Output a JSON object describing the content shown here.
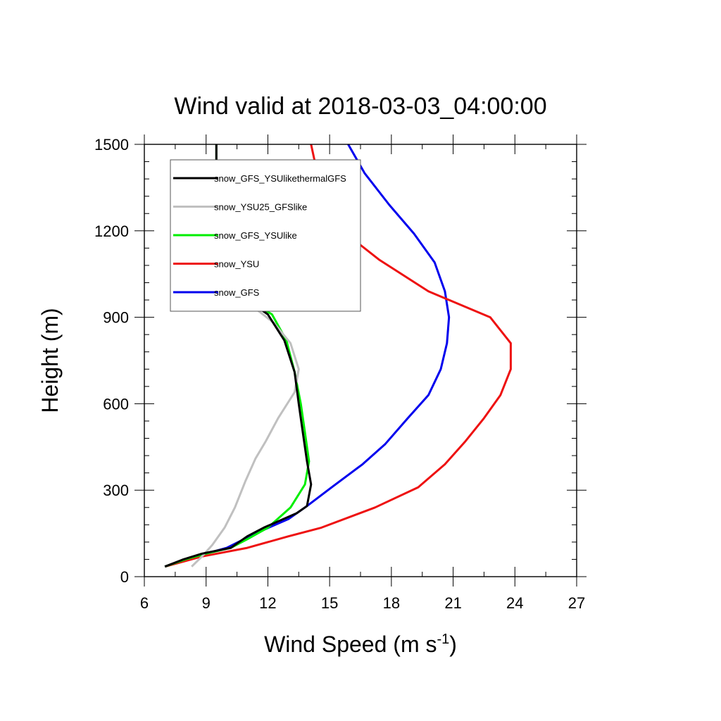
{
  "chart_data": {
    "type": "line",
    "title": "Wind valid at 2018-03-03_04:00:00",
    "xlabel": "Wind Speed (m s",
    "xlabel_sup": "-1",
    "xlabel_end": ")",
    "ylabel": "Height (m)",
    "xlim": [
      6,
      27
    ],
    "ylim": [
      0,
      1500
    ],
    "xticks": [
      6,
      9,
      12,
      15,
      18,
      21,
      24,
      27
    ],
    "yticks": [
      0,
      300,
      600,
      900,
      1200,
      1500
    ],
    "grid": false,
    "legend_position": "top-left",
    "series": [
      {
        "name": "snow_GFS_YSUlikethermalGFS",
        "color": "#000000",
        "points": [
          [
            7.0,
            35
          ],
          [
            7.9,
            60
          ],
          [
            8.8,
            80
          ],
          [
            10.2,
            100
          ],
          [
            11.0,
            140
          ],
          [
            11.8,
            170
          ],
          [
            13.4,
            220
          ],
          [
            13.9,
            245
          ],
          [
            14.1,
            320
          ],
          [
            13.9,
            400
          ],
          [
            13.7,
            500
          ],
          [
            13.5,
            600
          ],
          [
            13.3,
            710
          ],
          [
            12.8,
            820
          ],
          [
            12.0,
            910
          ],
          [
            10.6,
            980
          ],
          [
            10.1,
            1010
          ],
          [
            9.7,
            1100
          ],
          [
            9.5,
            1200
          ],
          [
            9.5,
            1300
          ],
          [
            9.5,
            1400
          ],
          [
            9.5,
            1500
          ]
        ]
      },
      {
        "name": "snow_YSU25_GFSlike",
        "color": "#c0c0c0",
        "points": [
          [
            8.3,
            35
          ],
          [
            8.8,
            70
          ],
          [
            9.3,
            110
          ],
          [
            9.9,
            170
          ],
          [
            10.4,
            240
          ],
          [
            10.9,
            330
          ],
          [
            11.4,
            410
          ],
          [
            11.9,
            470
          ],
          [
            12.5,
            550
          ],
          [
            13.3,
            640
          ],
          [
            13.5,
            720
          ],
          [
            13.1,
            810
          ],
          [
            12.3,
            880
          ],
          [
            11.4,
            930
          ],
          [
            10.5,
            970
          ],
          [
            9.9,
            1030
          ],
          [
            9.7,
            1100
          ],
          [
            9.5,
            1200
          ],
          [
            9.5,
            1300
          ],
          [
            9.5,
            1400
          ],
          [
            9.5,
            1500
          ]
        ]
      },
      {
        "name": "snow_GFS_YSUlike",
        "color": "#00ee00",
        "points": [
          [
            7.0,
            35
          ],
          [
            8.0,
            60
          ],
          [
            9.0,
            80
          ],
          [
            10.2,
            100
          ],
          [
            11.0,
            130
          ],
          [
            12.0,
            170
          ],
          [
            13.1,
            240
          ],
          [
            13.8,
            320
          ],
          [
            14.0,
            400
          ],
          [
            13.8,
            500
          ],
          [
            13.6,
            600
          ],
          [
            13.3,
            710
          ],
          [
            12.9,
            820
          ],
          [
            12.2,
            910
          ],
          [
            10.6,
            980
          ],
          [
            10.1,
            1010
          ],
          [
            9.7,
            1100
          ],
          [
            9.5,
            1200
          ],
          [
            9.5,
            1300
          ],
          [
            9.5,
            1400
          ],
          [
            9.5,
            1500
          ]
        ]
      },
      {
        "name": "snow_YSU",
        "color": "#ee1111",
        "points": [
          [
            7.0,
            35
          ],
          [
            8.8,
            70
          ],
          [
            11.0,
            100
          ],
          [
            13.0,
            140
          ],
          [
            14.6,
            170
          ],
          [
            17.2,
            240
          ],
          [
            19.3,
            310
          ],
          [
            20.6,
            390
          ],
          [
            21.6,
            470
          ],
          [
            22.5,
            550
          ],
          [
            23.3,
            630
          ],
          [
            23.8,
            720
          ],
          [
            23.8,
            810
          ],
          [
            22.8,
            900
          ],
          [
            19.8,
            990
          ],
          [
            17.4,
            1100
          ],
          [
            15.8,
            1190
          ],
          [
            15.4,
            1260
          ],
          [
            14.8,
            1300
          ],
          [
            14.4,
            1400
          ],
          [
            14.1,
            1500
          ]
        ]
      },
      {
        "name": "snow_GFS",
        "color": "#0000ee",
        "points": [
          [
            7.0,
            35
          ],
          [
            8.5,
            70
          ],
          [
            10.0,
            100
          ],
          [
            11.4,
            150
          ],
          [
            13.0,
            200
          ],
          [
            13.9,
            245
          ],
          [
            15.1,
            310
          ],
          [
            16.6,
            390
          ],
          [
            17.7,
            460
          ],
          [
            18.8,
            550
          ],
          [
            19.8,
            630
          ],
          [
            20.4,
            720
          ],
          [
            20.7,
            810
          ],
          [
            20.8,
            900
          ],
          [
            20.6,
            990
          ],
          [
            20.1,
            1090
          ],
          [
            19.1,
            1190
          ],
          [
            17.9,
            1290
          ],
          [
            16.7,
            1400
          ],
          [
            15.9,
            1500
          ]
        ]
      }
    ]
  }
}
